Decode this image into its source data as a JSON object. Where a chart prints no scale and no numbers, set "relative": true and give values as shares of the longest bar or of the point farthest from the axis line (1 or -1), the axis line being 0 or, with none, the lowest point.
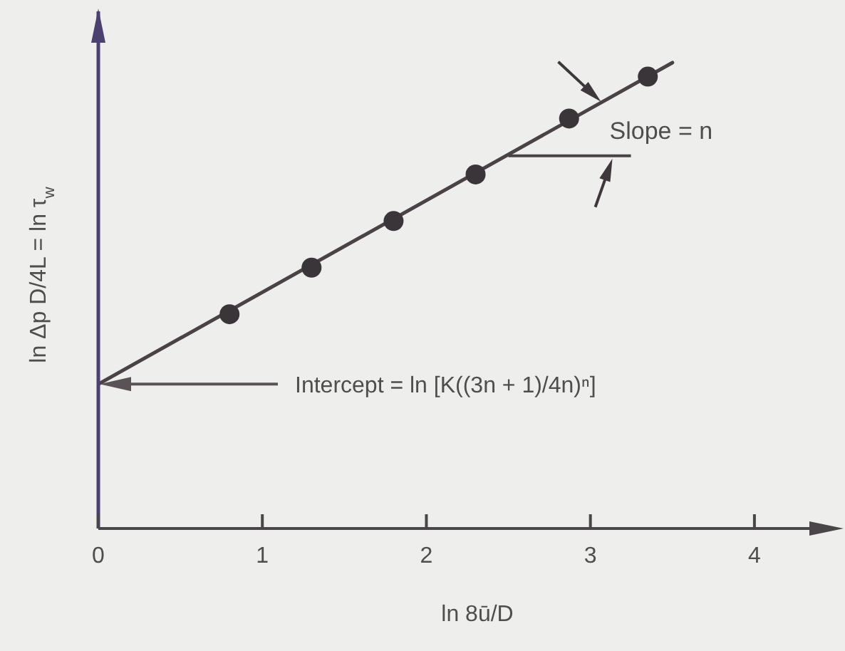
{
  "chart_data": {
    "type": "scatter",
    "xlabel": "ln 8ū/D",
    "ylabel": "ln Δp D/4L = ln τ$_{w}$",
    "relative": true,
    "xlim": [
      0,
      4.5
    ],
    "xticks": [
      0,
      1,
      2,
      3,
      4
    ],
    "marker": "circle",
    "series": [
      {
        "type": "line",
        "color": "#4a4247",
        "marker": "none",
        "x": [
          0,
          3.5
        ],
        "values": [
          0.31,
          1.0
        ]
      },
      {
        "color": "#3a3539",
        "x": [
          0.8,
          1.3,
          1.8,
          2.3,
          2.87,
          3.35
        ],
        "values": [
          0.46,
          0.56,
          0.66,
          0.76,
          0.88,
          0.97
        ]
      }
    ],
    "annotations": [
      "Intercept = ln [K((3n + 1)/4n)ⁿ]",
      {
        "text": "Slope = n",
        "x": 2.5,
        "y": 0.8
      }
    ]
  }
}
